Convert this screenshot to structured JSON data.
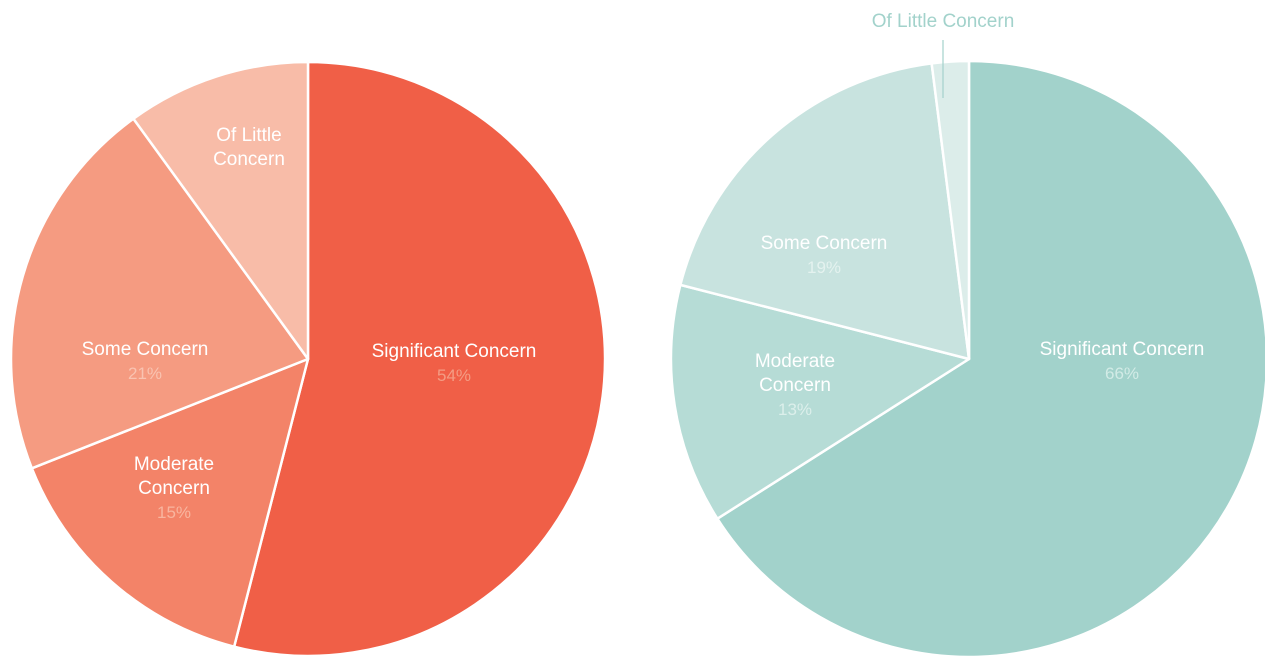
{
  "chart_data": [
    {
      "type": "pie",
      "start": "12-oclock",
      "direction": "clockwise",
      "slices": [
        {
          "label_lines": [
            "Significant Concern"
          ],
          "value": 54,
          "value_text": "54%",
          "color": "#f05f47",
          "pct_color": "#f49c84"
        },
        {
          "label_lines": [
            "Moderate",
            "Concern"
          ],
          "value": 15,
          "value_text": "15%",
          "color": "#f38368",
          "pct_color": "#f8b59f"
        },
        {
          "label_lines": [
            "Some Concern"
          ],
          "value": 21,
          "value_text": "21%",
          "color": "#f59b81",
          "pct_color": "#f9c3b1"
        },
        {
          "label_lines": [
            "Of Little",
            "Concern"
          ],
          "value": 10,
          "value_text": "",
          "color": "#f8bca8",
          "pct_color": "#fbd8cb"
        }
      ]
    },
    {
      "type": "pie",
      "start": "12-oclock",
      "direction": "clockwise",
      "slices": [
        {
          "label_lines": [
            "Significant Concern"
          ],
          "value": 66,
          "value_text": "66%",
          "color": "#a2d2cb",
          "pct_color": "#d2ebe6"
        },
        {
          "label_lines": [
            "Moderate",
            "Concern"
          ],
          "value": 13,
          "value_text": "13%",
          "color": "#b6dcd6",
          "pct_color": "#dcefeb"
        },
        {
          "label_lines": [
            "Some Concern"
          ],
          "value": 19,
          "value_text": "19%",
          "color": "#c8e3df",
          "pct_color": "#e4f2ef"
        },
        {
          "label_lines": [
            "Of Little Concern"
          ],
          "value": 2,
          "value_text": "",
          "color": "#dcedea",
          "pct_color": "#eef7f5",
          "callout_color": "#a2d2cb"
        }
      ]
    }
  ]
}
